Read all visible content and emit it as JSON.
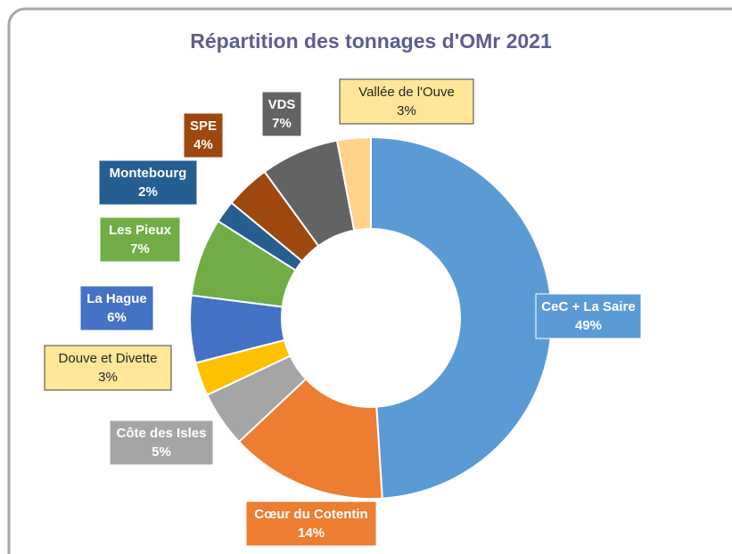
{
  "chart_data": {
    "type": "donut",
    "title": "Répartition des tonnages d'OMr 2021",
    "categories": [
      "CeC + La Saire",
      "Cœur du Cotentin",
      "Côte des Isles",
      "Douve et Divette",
      "La Hague",
      "Les Pieux",
      "Montebourg",
      "SPE",
      "VDS",
      "Vallée de l'Ouve"
    ],
    "values": [
      49,
      14,
      5,
      3,
      6,
      7,
      2,
      4,
      7,
      3
    ],
    "value_labels": [
      "49%",
      "14%",
      "5%",
      "3%",
      "6%",
      "7%",
      "2%",
      "4%",
      "7%",
      "3%"
    ],
    "colors": [
      "#5b9bd5",
      "#ed7d31",
      "#a5a5a5",
      "#ffc000",
      "#4472c4",
      "#70ad47",
      "#255e91",
      "#9e480e",
      "#636363",
      "#ffd38a"
    ]
  }
}
